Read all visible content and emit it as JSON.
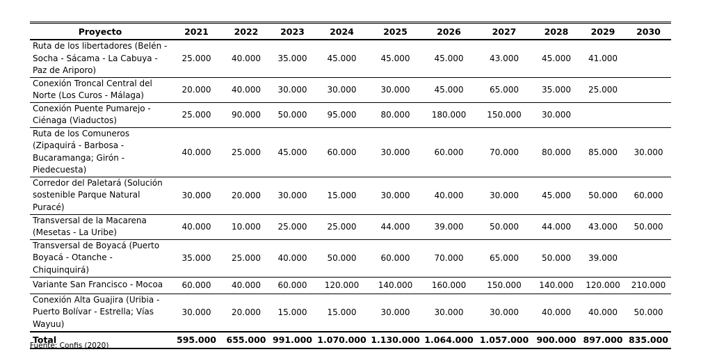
{
  "table": {
    "header": [
      "Proyecto",
      "2021",
      "2022",
      "2023",
      "2024",
      "2025",
      "2026",
      "2027",
      "2028",
      "2029",
      "2030"
    ],
    "rows": [
      {
        "project": [
          "Ruta de los libertadores (Belén -",
          "Socha - Sácama - La Cabuya -",
          "Paz de Ariporo)"
        ],
        "values": [
          "25.000",
          "40.000",
          "35.000",
          "45.000",
          "45.000",
          "45.000",
          "43.000",
          "45.000",
          "41.000",
          null
        ]
      },
      {
        "project": [
          "Conexión Troncal Central del",
          "Norte (Los Curos - Málaga)"
        ],
        "values": [
          "20.000",
          "40.000",
          "30.000",
          "30.000",
          "30.000",
          "45.000",
          "65.000",
          "35.000",
          "25.000",
          null
        ]
      },
      {
        "project": [
          "Conexión Puente Pumarejo -",
          "Ciénaga (Viaductos)"
        ],
        "values": [
          "25.000",
          "90.000",
          "50.000",
          "95.000",
          "80.000",
          "180.000",
          "150.000",
          "30.000",
          null,
          null
        ]
      },
      {
        "project": [
          "Ruta de los Comuneros",
          "(Zipaquirá - Barbosa -",
          "Bucaramanga; Girón -",
          "Piedecuesta)"
        ],
        "values": [
          "40.000",
          "25.000",
          "45.000",
          "60.000",
          "30.000",
          "60.000",
          "70.000",
          "80.000",
          "85.000",
          "30.000"
        ]
      },
      {
        "project": [
          "Corredor del Paletará (Solución",
          "sostenible Parque Natural",
          "Puracé)"
        ],
        "values": [
          "30.000",
          "20.000",
          "30.000",
          "15.000",
          "30.000",
          "40.000",
          "30.000",
          "45.000",
          "50.000",
          "60.000"
        ]
      },
      {
        "project": [
          "Transversal de la Macarena",
          "(Mesetas - La Uribe)"
        ],
        "values": [
          "40.000",
          "10.000",
          "25.000",
          "25.000",
          "44.000",
          "39.000",
          "50.000",
          "44.000",
          "43.000",
          "50.000"
        ]
      },
      {
        "project": [
          "Transversal de Boyacá (Puerto",
          "Boyacá - Otanche -",
          "Chiquinquirá)"
        ],
        "values": [
          "35.000",
          "25.000",
          "40.000",
          "50.000",
          "60.000",
          "70.000",
          "65.000",
          "50.000",
          "39.000",
          null
        ]
      },
      {
        "project": [
          "Variante San Francisco - Mocoa"
        ],
        "values": [
          "60.000",
          "40.000",
          "60.000",
          "120.000",
          "140.000",
          "160.000",
          "150.000",
          "140.000",
          "120.000",
          "210.000"
        ]
      },
      {
        "project": [
          "Conexión Alta Guajira (Uribia -",
          "Puerto Bolívar - Estrella; Vías",
          "Wayuu)"
        ],
        "values": [
          "30.000",
          "20.000",
          "15.000",
          "15.000",
          "30.000",
          "30.000",
          "30.000",
          "40.000",
          "40.000",
          "50.000"
        ]
      }
    ],
    "total": {
      "label": "Total",
      "values": [
        "595.000",
        "655.000",
        "991.000",
        "1.070.000",
        "1.130.000",
        "1.064.000",
        "1.057.000",
        "900.000",
        "897.000",
        "835.000"
      ]
    }
  },
  "source": "Fuente: Confis (2020)"
}
